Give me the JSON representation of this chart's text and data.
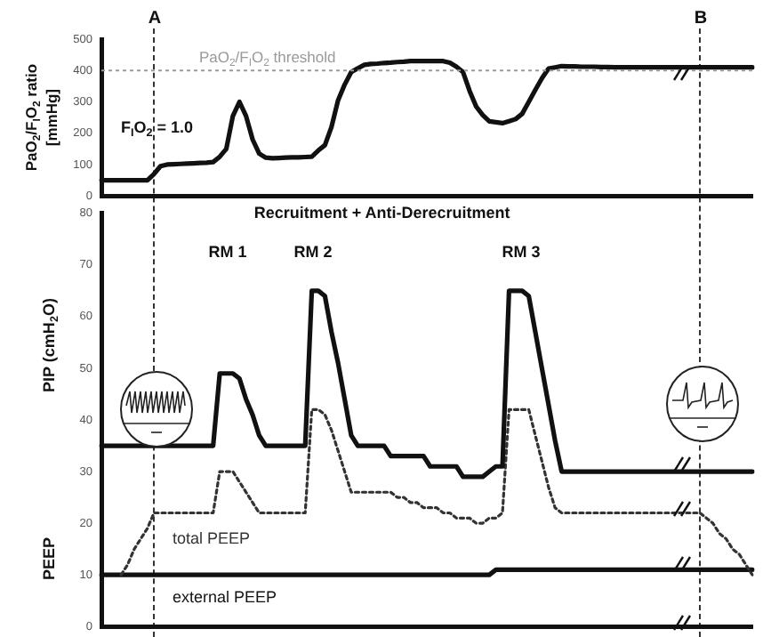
{
  "chart_data": [
    {
      "type": "line",
      "ylabel": "PaO$_{2}$/F$_{I}$O$_{2}$ ratio [mmHg]",
      "categories": [
        null,
        null,
        null,
        null,
        null,
        null,
        null,
        null,
        null,
        null,
        null,
        null,
        null,
        null,
        null,
        null,
        null,
        null,
        null,
        null,
        null,
        null,
        null,
        null,
        null,
        null,
        null,
        null,
        null,
        null,
        null,
        null,
        null,
        null,
        null,
        null,
        null,
        null,
        null,
        null,
        null,
        null,
        null,
        null,
        null,
        null,
        null,
        null,
        null,
        null,
        null,
        null,
        null,
        null,
        null,
        null,
        null,
        null,
        null,
        null,
        null,
        null,
        null,
        null,
        null,
        null,
        null,
        null,
        null,
        null,
        null,
        null,
        null,
        null,
        null,
        null,
        null,
        null,
        null,
        null,
        null,
        null,
        null,
        null,
        null,
        null,
        null,
        null,
        null,
        null,
        null,
        null,
        null,
        null,
        null,
        null,
        null,
        null,
        null,
        null
      ],
      "ylim": [
        0,
        500
      ],
      "yticks": [
        0,
        100,
        200,
        300,
        400,
        500
      ],
      "tick_labels": "y",
      "grid": false,
      "legend": false,
      "marker": "none",
      "series": [
        {
          "color": "#111111",
          "line_style": "solid",
          "values": [
            50,
            50,
            50,
            50,
            50,
            50,
            50,
            50,
            70,
            95,
            100,
            101,
            102,
            103,
            104,
            105,
            106,
            108,
            125,
            150,
            255,
            300,
            255,
            180,
            135,
            122,
            120,
            121,
            122,
            123,
            123,
            124,
            125,
            145,
            162,
            220,
            305,
            355,
            395,
            407,
            418,
            421,
            422,
            424,
            425,
            427,
            428,
            430,
            430,
            430,
            430,
            430,
            430,
            425,
            412,
            395,
            335,
            285,
            258,
            238,
            235,
            232,
            238,
            245,
            262,
            300,
            338,
            375,
            406,
            410,
            414,
            413,
            413,
            412,
            412,
            412,
            411,
            411,
            410,
            410,
            410,
            410,
            410,
            410,
            410,
            410,
            410,
            410,
            410,
            410,
            410,
            410,
            410,
            410,
            410,
            410,
            410,
            410,
            410,
            410
          ]
        }
      ],
      "ref_lines": [
        {
          "axis": "y",
          "value": 400,
          "label": "PaO$_{2}$/F$_{I}$O$_{2}$ threshold",
          "color": "#999999",
          "line_style": "dotted"
        }
      ],
      "annotations": [
        "F$_{I}$O$_{2}$ = 1.0",
        "A",
        "B"
      ]
    },
    {
      "type": "line",
      "ylabel": "PIP (cmH$_{2}$O)",
      "categories": [
        null,
        null,
        null,
        null,
        null,
        null,
        null,
        null,
        null,
        null,
        null,
        null,
        null,
        null,
        null,
        null,
        null,
        null,
        null,
        null,
        null,
        null,
        null,
        null,
        null,
        null,
        null,
        null,
        null,
        null,
        null,
        null,
        null,
        null,
        null,
        null,
        null,
        null,
        null,
        null,
        null,
        null,
        null,
        null,
        null,
        null,
        null,
        null,
        null,
        null,
        null,
        null,
        null,
        null,
        null,
        null,
        null,
        null,
        null,
        null,
        null,
        null,
        null,
        null,
        null,
        null,
        null,
        null,
        null,
        null,
        null,
        null,
        null,
        null,
        null,
        null,
        null,
        null,
        null,
        null,
        null,
        null,
        null,
        null,
        null,
        null,
        null,
        null,
        null,
        null,
        null,
        null,
        null,
        null,
        null,
        null,
        null,
        null,
        null,
        null
      ],
      "ylim": [
        0,
        80
      ],
      "yticks": [
        0,
        10,
        20,
        30,
        40,
        50,
        60,
        70,
        80
      ],
      "tick_labels": "y",
      "grid": false,
      "legend": false,
      "marker": "none",
      "series": [
        {
          "color": "#111111",
          "line_style": "solid",
          "values": [
            35,
            35,
            35,
            35,
            35,
            35,
            35,
            35,
            35,
            35,
            35,
            35,
            35,
            35,
            35,
            35,
            35,
            35,
            49,
            49,
            49,
            48,
            44,
            41,
            37,
            35,
            35,
            35,
            35,
            35,
            35,
            35,
            65,
            65,
            64,
            57,
            51,
            44,
            37,
            35,
            35,
            35,
            35,
            35,
            33,
            33,
            33,
            33,
            33,
            33,
            31,
            31,
            31,
            31,
            31,
            29,
            29,
            29,
            29,
            30,
            31,
            31,
            65,
            65,
            65,
            64,
            57,
            50,
            43,
            36,
            30,
            30,
            30,
            30,
            30,
            30,
            30,
            30,
            30,
            30,
            30,
            30,
            30,
            30,
            30,
            30,
            30,
            30,
            30,
            30,
            30,
            30,
            30,
            30,
            30,
            30,
            30,
            30,
            30,
            30
          ]
        },
        {
          "name": "total PEEP",
          "color": "#333333",
          "line_style": "dotted",
          "values": [
            null,
            null,
            null,
            10,
            12,
            15,
            17,
            19,
            22,
            22,
            22,
            22,
            22,
            22,
            22,
            22,
            22,
            22,
            30,
            30,
            30,
            28,
            26,
            24,
            22,
            22,
            22,
            22,
            22,
            22,
            22,
            22,
            42,
            42,
            41,
            38,
            34,
            30,
            26,
            26,
            26,
            26,
            26,
            26,
            26,
            25,
            25,
            24,
            24,
            23,
            23,
            23,
            22,
            22,
            21,
            21,
            21,
            20,
            20,
            21,
            21,
            22,
            42,
            42,
            42,
            42,
            37,
            32,
            27,
            23,
            22,
            22,
            22,
            22,
            22,
            22,
            22,
            22,
            22,
            22,
            22,
            22,
            22,
            22,
            22,
            22,
            22,
            22,
            22,
            22,
            22,
            22,
            21,
            20,
            18,
            17,
            15,
            14,
            12,
            10
          ]
        },
        {
          "name": "external PEEP",
          "color": "#111111",
          "line_style": "solid",
          "values": [
            10,
            10,
            10,
            10,
            10,
            10,
            10,
            10,
            10,
            10,
            10,
            10,
            10,
            10,
            10,
            10,
            10,
            10,
            10,
            10,
            10,
            10,
            10,
            10,
            10,
            10,
            10,
            10,
            10,
            10,
            10,
            10,
            10,
            10,
            10,
            10,
            10,
            10,
            10,
            10,
            10,
            10,
            10,
            10,
            10,
            10,
            10,
            10,
            10,
            10,
            10,
            10,
            10,
            10,
            10,
            10,
            10,
            10,
            10,
            10,
            11,
            11,
            11,
            11,
            11,
            11,
            11,
            11,
            11,
            11,
            11,
            11,
            11,
            11,
            11,
            11,
            11,
            11,
            11,
            11,
            11,
            11,
            11,
            11,
            11,
            11,
            11,
            11,
            11,
            11,
            11,
            11,
            11,
            11,
            11,
            11,
            11,
            11,
            11,
            11
          ]
        }
      ],
      "annotations": [
        "Recruitment + Anti-Derecruitment",
        "RM 1",
        "RM 2",
        "RM 3",
        "PEEP"
      ]
    }
  ]
}
